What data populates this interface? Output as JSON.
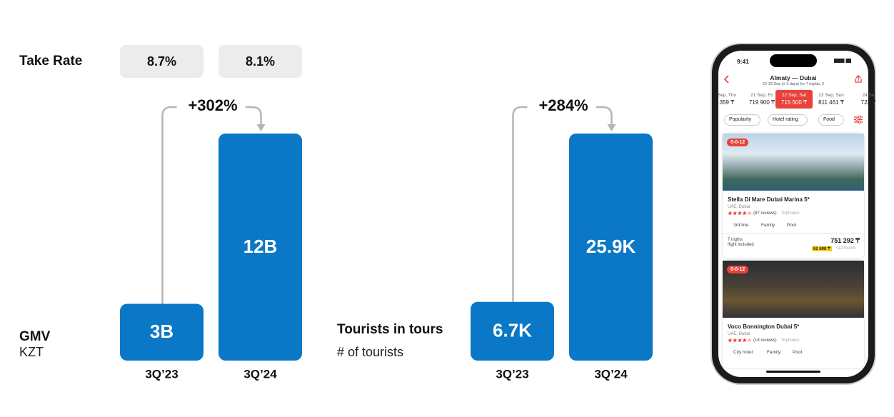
{
  "take_rate": {
    "label": "Take Rate",
    "items": [
      "8.7%",
      "8.1%"
    ]
  },
  "chart_data": [
    {
      "type": "bar",
      "title": "GMV",
      "subtitle": "KZT",
      "categories": [
        "3Q’23",
        "3Q’24"
      ],
      "values": [
        3,
        12
      ],
      "value_labels": [
        "3B",
        "12B"
      ],
      "color": "#0a78c6",
      "annotation": "+302%"
    },
    {
      "type": "bar",
      "title": "Tourists in tours",
      "subtitle": "# of tourists",
      "categories": [
        "3Q’23",
        "3Q’24"
      ],
      "values": [
        6.7,
        25.9
      ],
      "value_labels": [
        "6.7K",
        "25.9K"
      ],
      "color": "#0a78c6",
      "annotation": "+284%"
    }
  ],
  "phone": {
    "time": "9:41",
    "route": "Almaty — Dubai",
    "dates_note": "22-29 Sep (± 3 days) for 7 nights, 2",
    "dates": [
      {
        "day": "Sep, Thu",
        "price": "359 ₸"
      },
      {
        "day": "21 Sep, Fri",
        "price": "719 900 ₸"
      },
      {
        "day": "22 Sep, Sat",
        "price": "715 500 ₸"
      },
      {
        "day": "23 Sep, Sun",
        "price": "811 461 ₸"
      },
      {
        "day": "24 Se",
        "price": "722 ₸"
      }
    ],
    "filters": [
      "Popularity",
      "Hotel rating",
      "Food"
    ],
    "hotels": [
      {
        "badge": "0-0-12",
        "name": "Stella Di Mare Dubai Marina 5*",
        "location": "UAE, Dubai",
        "reviews": "(87 reviews)",
        "source": "Tophotels",
        "tags": [
          "3rd line",
          "Family",
          "Pool"
        ],
        "nights": "7 nights",
        "flight": "flight included",
        "price": "751 292 ₸",
        "installment": "62 608 ₸",
        "installment_note": "×12 month"
      },
      {
        "badge": "0-0-12",
        "name": "Voco Bonnington Dubai 5*",
        "location": "UAE, Dubai",
        "reviews": "(18 reviews)",
        "source": "Tophotels",
        "tags": [
          "City hotel",
          "Family",
          "Pool"
        ]
      }
    ]
  }
}
